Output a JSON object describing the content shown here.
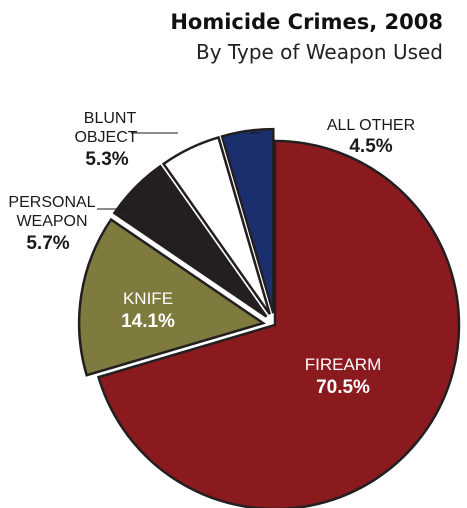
{
  "chart_data": {
    "type": "pie",
    "title": "Homicide Crimes, 2008",
    "subtitle": "By Type of Weapon Used",
    "slices": [
      {
        "label": "FIREARM",
        "value": 70.5,
        "value_label": "70.5%",
        "color": "#8b1a1e",
        "exploded": false
      },
      {
        "label": "KNIFE",
        "value": 14.1,
        "value_label": "14.1%",
        "color": "#7f7a3e",
        "exploded": true
      },
      {
        "label_lines": [
          "PERSONAL",
          "WEAPON"
        ],
        "value": 5.7,
        "value_label": "5.7%",
        "color": "#231f20",
        "exploded": true
      },
      {
        "label_lines": [
          "BLUNT",
          "OBJECT"
        ],
        "value": 5.3,
        "value_label": "5.3%",
        "color": "#ffffff",
        "exploded": true
      },
      {
        "label": "ALL OTHER",
        "value": 4.5,
        "value_label": "4.5%",
        "color": "#1b2f6e",
        "exploded": true
      }
    ]
  }
}
